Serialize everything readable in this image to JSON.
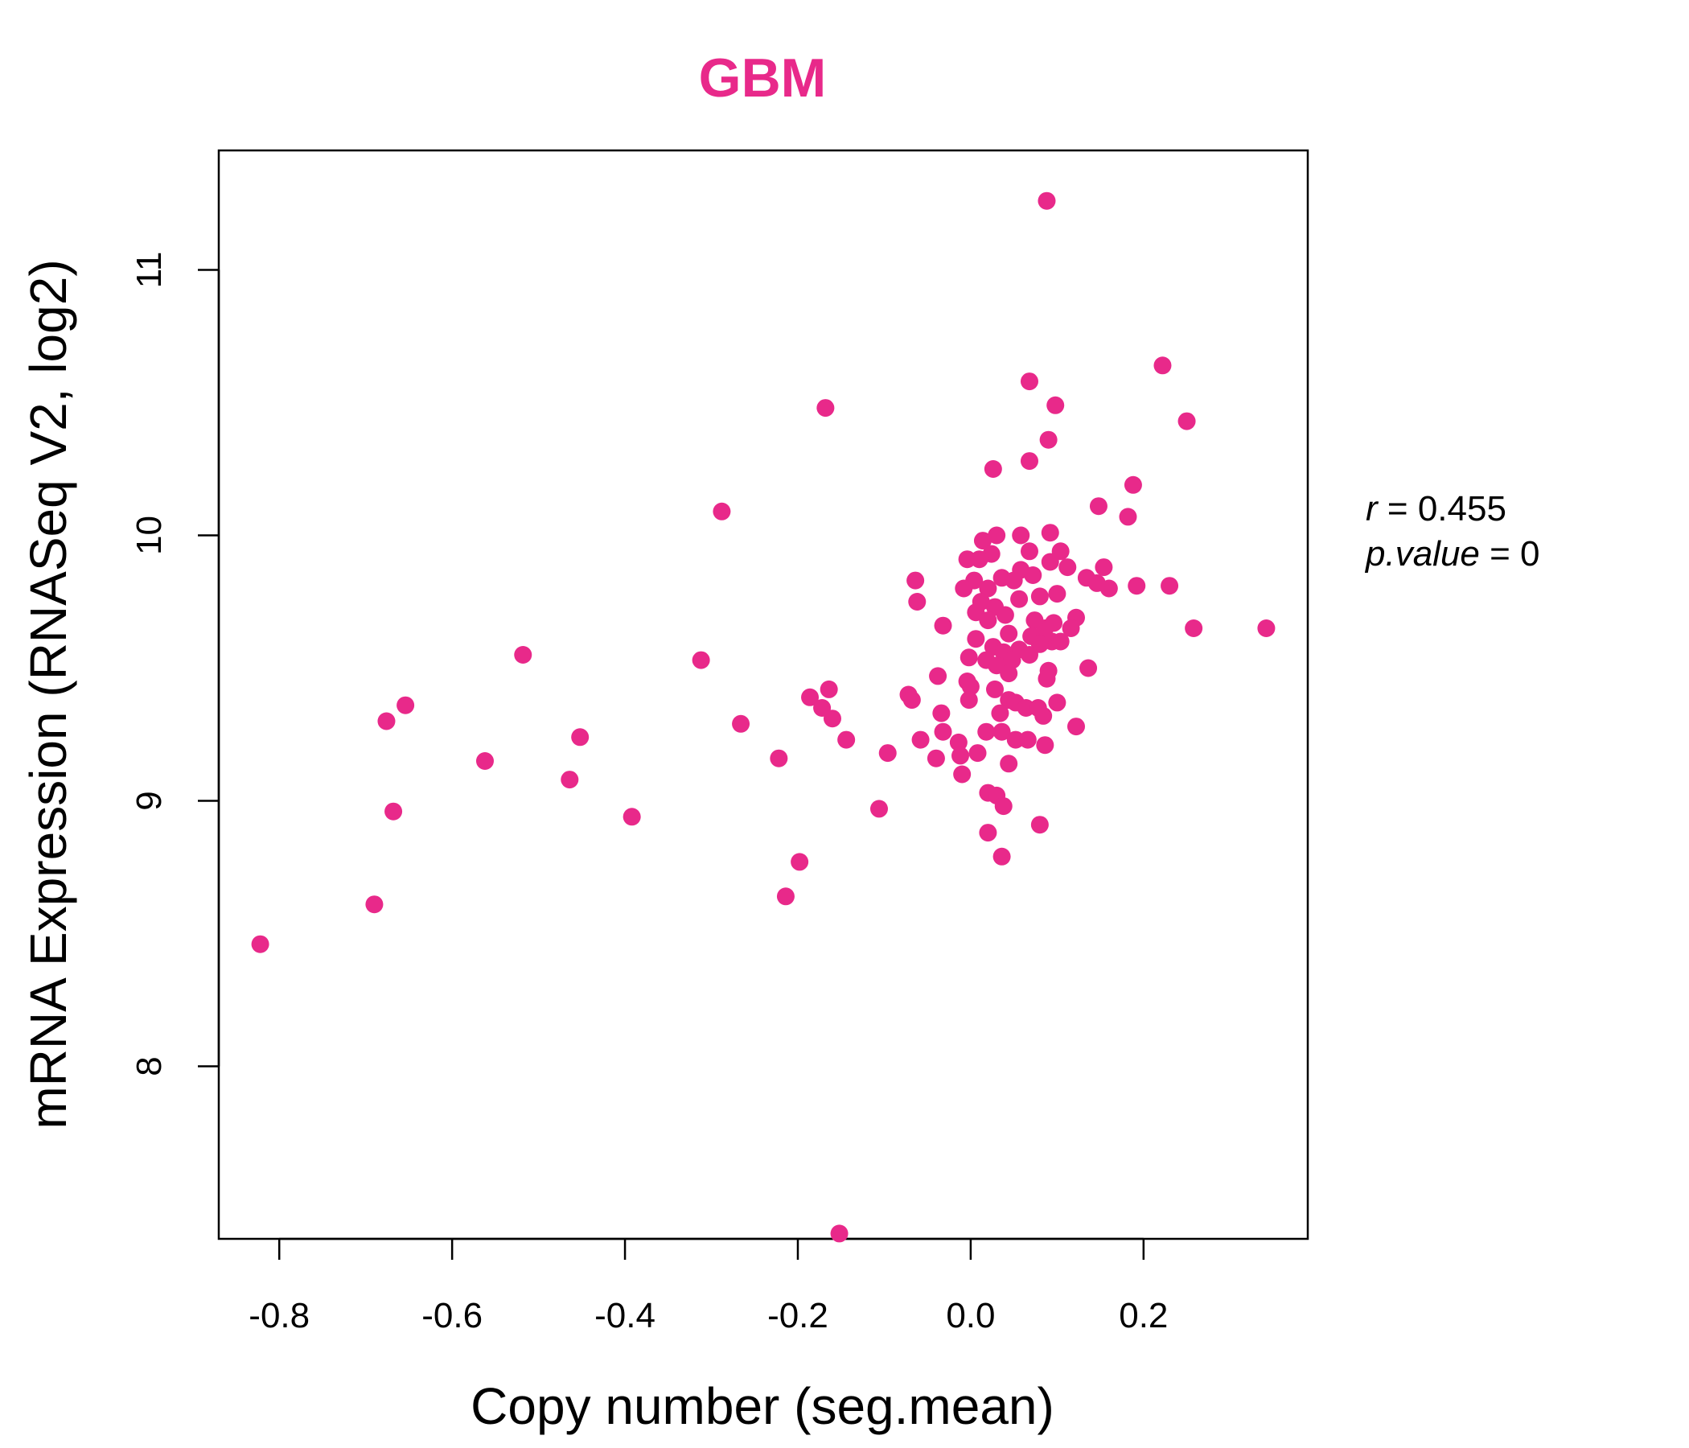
{
  "chart_data": {
    "type": "scatter",
    "title": "GBM",
    "xlabel": "Copy number (seg.mean)",
    "ylabel": "mRNA Expression (RNASeq V2, log2)",
    "xlim": [
      -0.87,
      0.39
    ],
    "ylim": [
      7.35,
      11.45
    ],
    "x_ticks": [
      -0.8,
      -0.6,
      -0.4,
      -0.2,
      0.0,
      0.2
    ],
    "x_tick_labels": [
      "-0.8",
      "-0.6",
      "-0.4",
      "-0.2",
      "0.0",
      "0.2"
    ],
    "y_ticks": [
      8,
      9,
      10,
      11
    ],
    "y_tick_labels": [
      "8",
      "9",
      "10",
      "11"
    ],
    "grid": false,
    "color": "#E8298A",
    "annotations": {
      "r_label": "r",
      "r_value": "0.455",
      "p_label": "p.value",
      "p_value": "0"
    },
    "points": [
      [
        0.088,
        11.26
      ],
      [
        0.222,
        10.64
      ],
      [
        0.068,
        10.58
      ],
      [
        0.098,
        10.49
      ],
      [
        -0.168,
        10.48
      ],
      [
        0.25,
        10.43
      ],
      [
        0.09,
        10.36
      ],
      [
        0.068,
        10.28
      ],
      [
        0.026,
        10.25
      ],
      [
        0.188,
        10.19
      ],
      [
        0.148,
        10.11
      ],
      [
        -0.288,
        10.09
      ],
      [
        0.182,
        10.07
      ],
      [
        0.092,
        10.01
      ],
      [
        0.058,
        10.0
      ],
      [
        0.03,
        10.0
      ],
      [
        0.014,
        9.98
      ],
      [
        0.068,
        9.94
      ],
      [
        0.104,
        9.94
      ],
      [
        0.024,
        9.93
      ],
      [
        -0.004,
        9.91
      ],
      [
        0.01,
        9.91
      ],
      [
        0.092,
        9.9
      ],
      [
        0.112,
        9.88
      ],
      [
        0.154,
        9.88
      ],
      [
        0.058,
        9.87
      ],
      [
        0.072,
        9.85
      ],
      [
        0.134,
        9.84
      ],
      [
        0.036,
        9.84
      ],
      [
        0.004,
        9.83
      ],
      [
        0.05,
        9.83
      ],
      [
        -0.064,
        9.83
      ],
      [
        0.146,
        9.82
      ],
      [
        0.192,
        9.81
      ],
      [
        0.23,
        9.81
      ],
      [
        0.16,
        9.8
      ],
      [
        -0.008,
        9.8
      ],
      [
        0.02,
        9.8
      ],
      [
        0.1,
        9.78
      ],
      [
        0.08,
        9.77
      ],
      [
        0.056,
        9.76
      ],
      [
        -0.062,
        9.75
      ],
      [
        0.012,
        9.75
      ],
      [
        0.028,
        9.73
      ],
      [
        0.006,
        9.71
      ],
      [
        0.04,
        9.7
      ],
      [
        0.122,
        9.69
      ],
      [
        0.074,
        9.68
      ],
      [
        0.02,
        9.68
      ],
      [
        0.096,
        9.67
      ],
      [
        -0.032,
        9.66
      ],
      [
        0.116,
        9.65
      ],
      [
        0.258,
        9.65
      ],
      [
        0.342,
        9.65
      ],
      [
        0.086,
        9.65
      ],
      [
        0.044,
        9.63
      ],
      [
        0.07,
        9.62
      ],
      [
        0.006,
        9.61
      ],
      [
        0.094,
        9.6
      ],
      [
        0.104,
        9.6
      ],
      [
        0.08,
        9.59
      ],
      [
        0.026,
        9.58
      ],
      [
        0.056,
        9.57
      ],
      [
        0.038,
        9.56
      ],
      [
        0.068,
        9.55
      ],
      [
        -0.002,
        9.54
      ],
      [
        0.018,
        9.53
      ],
      [
        0.048,
        9.53
      ],
      [
        -0.312,
        9.53
      ],
      [
        0.03,
        9.51
      ],
      [
        0.136,
        9.5
      ],
      [
        0.09,
        9.49
      ],
      [
        0.044,
        9.48
      ],
      [
        -0.038,
        9.47
      ],
      [
        0.088,
        9.46
      ],
      [
        -0.004,
        9.45
      ],
      [
        0.0,
        9.43
      ],
      [
        0.028,
        9.42
      ],
      [
        -0.164,
        9.42
      ],
      [
        -0.072,
        9.4
      ],
      [
        -0.068,
        9.38
      ],
      [
        -0.002,
        9.38
      ],
      [
        -0.186,
        9.39
      ],
      [
        0.044,
        9.38
      ],
      [
        0.052,
        9.37
      ],
      [
        0.1,
        9.37
      ],
      [
        -0.172,
        9.35
      ],
      [
        0.064,
        9.35
      ],
      [
        0.078,
        9.35
      ],
      [
        -0.034,
        9.33
      ],
      [
        0.034,
        9.33
      ],
      [
        0.084,
        9.32
      ],
      [
        -0.16,
        9.31
      ],
      [
        -0.266,
        9.29
      ],
      [
        0.122,
        9.28
      ],
      [
        0.036,
        9.26
      ],
      [
        -0.032,
        9.26
      ],
      [
        0.018,
        9.26
      ],
      [
        -0.144,
        9.23
      ],
      [
        -0.058,
        9.23
      ],
      [
        0.052,
        9.23
      ],
      [
        0.066,
        9.23
      ],
      [
        0.086,
        9.21
      ],
      [
        -0.014,
        9.22
      ],
      [
        0.008,
        9.18
      ],
      [
        -0.012,
        9.17
      ],
      [
        -0.096,
        9.18
      ],
      [
        -0.04,
        9.16
      ],
      [
        -0.222,
        9.16
      ],
      [
        0.044,
        9.14
      ],
      [
        -0.01,
        9.1
      ],
      [
        0.02,
        9.03
      ],
      [
        0.03,
        9.02
      ],
      [
        0.038,
        8.98
      ],
      [
        -0.106,
        8.97
      ],
      [
        0.08,
        8.91
      ],
      [
        0.02,
        8.88
      ],
      [
        0.036,
        8.79
      ],
      [
        -0.198,
        8.77
      ],
      [
        -0.214,
        8.64
      ],
      [
        -0.518,
        9.55
      ],
      [
        -0.654,
        9.36
      ],
      [
        -0.676,
        9.3
      ],
      [
        -0.452,
        9.24
      ],
      [
        -0.562,
        9.15
      ],
      [
        -0.464,
        9.08
      ],
      [
        -0.668,
        8.96
      ],
      [
        -0.392,
        8.94
      ],
      [
        -0.69,
        8.61
      ],
      [
        -0.822,
        8.46
      ],
      [
        -0.152,
        7.37
      ]
    ]
  }
}
